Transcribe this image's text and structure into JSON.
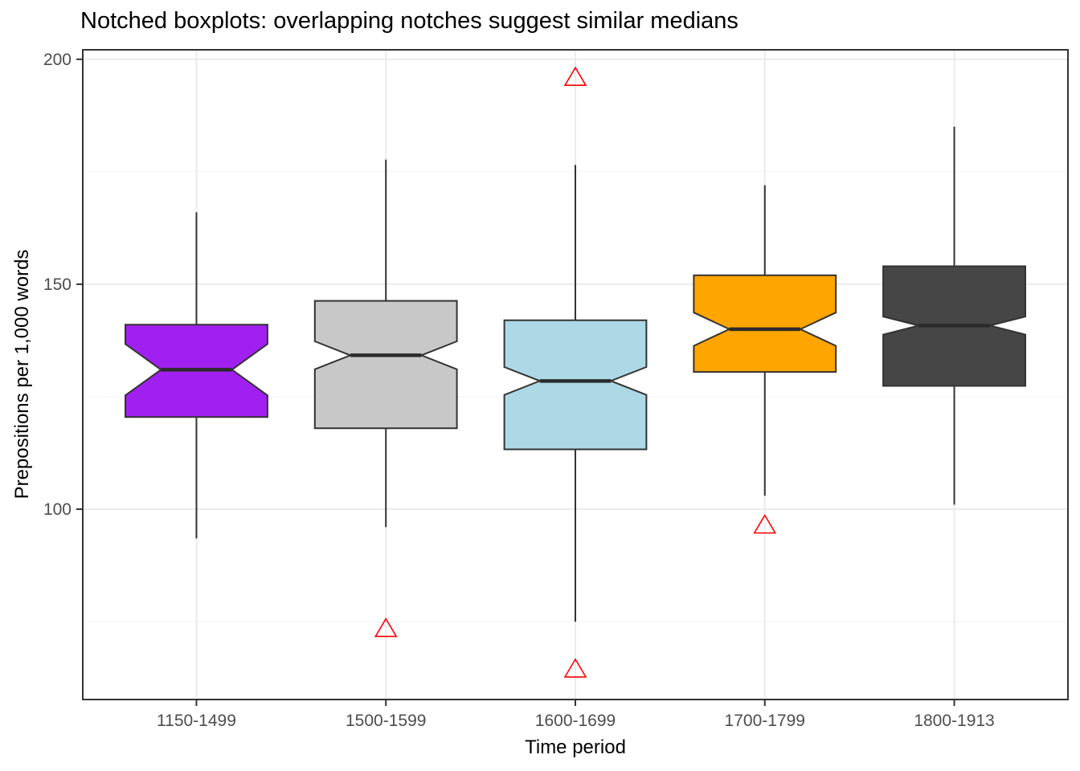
{
  "title": "Notched boxplots: overlapping notches suggest similar medians",
  "chart_data": {
    "type": "boxplot",
    "notched": true,
    "title": "Notched boxplots: overlapping notches suggest similar medians",
    "xlabel": "Time period",
    "ylabel": "Prepositions per 1,000 words",
    "ylim": [
      57.7,
      202.1
    ],
    "yticks": [
      100,
      150,
      200
    ],
    "yticks_minor": [
      75,
      125,
      175
    ],
    "categories": [
      "1150-1499",
      "1500-1599",
      "1600-1699",
      "1700-1799",
      "1800-1913"
    ],
    "boxes": [
      {
        "category": "1150-1499",
        "color": "#A020F0",
        "whisker_low": 93.5,
        "q1": 120.5,
        "notch_low": 125.3,
        "median": 131,
        "notch_high": 136.7,
        "q3": 141,
        "whisker_high": 166,
        "outliers": []
      },
      {
        "category": "1500-1599",
        "color": "#C8C8C8",
        "whisker_low": 96,
        "q1": 118,
        "notch_low": 131.1,
        "median": 134.2,
        "notch_high": 137.3,
        "q3": 146.3,
        "whisker_high": 177.7,
        "outliers": [
          73.5
        ]
      },
      {
        "category": "1600-1699",
        "color": "#ADD8E6",
        "whisker_low": 75,
        "q1": 113.3,
        "notch_low": 125.4,
        "median": 128.5,
        "notch_high": 131.6,
        "q3": 142,
        "whisker_high": 176.5,
        "outliers": [
          196,
          64.5
        ]
      },
      {
        "category": "1700-1799",
        "color": "#FFA500",
        "whisker_low": 103,
        "q1": 130.5,
        "notch_low": 136.3,
        "median": 140,
        "notch_high": 143.7,
        "q3": 152,
        "whisker_high": 172,
        "outliers": [
          96.5
        ]
      },
      {
        "category": "1800-1913",
        "color": "#464646",
        "whisker_low": 101,
        "q1": 127.4,
        "notch_low": 138.8,
        "median": 140.8,
        "notch_high": 142.8,
        "q3": 154,
        "whisker_high": 185,
        "outliers": []
      }
    ],
    "outlier_marker": {
      "shape": "triangle-open",
      "color": "#FF0000"
    },
    "grid": "major-and-minor",
    "legend": "none",
    "panel_border": true
  },
  "style_colors": {
    "grid_major": "#EBEBEB",
    "grid_minor": "#F0F0F0",
    "panel_border": "#333333",
    "box_outline": "#333333",
    "median_line": "#2B2B2B",
    "tick_label": "#4D4D4D",
    "tick_mark": "#333333"
  }
}
